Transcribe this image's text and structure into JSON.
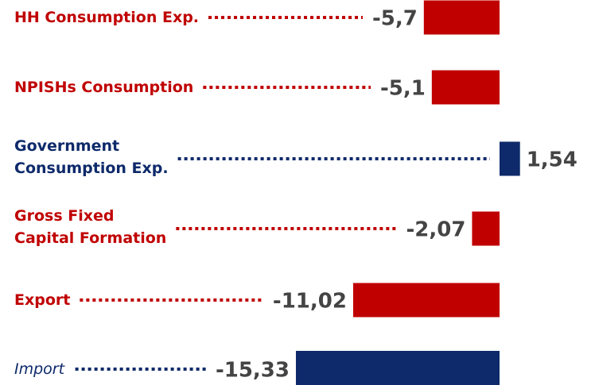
{
  "chart_data": {
    "type": "bar",
    "orientation": "horizontal",
    "categories": [
      "HH Consumption Exp.",
      "NPISHs Consumption",
      "Government\nConsumption Exp.",
      "Gross Fixed\nCapital Formation",
      "Export",
      "Import"
    ],
    "values": [
      -5.7,
      -5.1,
      1.54,
      -2.07,
      -11.02,
      -15.33
    ],
    "value_labels": [
      "-5,7",
      "-5,1",
      "1,54",
      "-2,07",
      "-11,02",
      "-15,33"
    ],
    "colors": [
      "#c00000",
      "#c00000",
      "#0e2a6b",
      "#c00000",
      "#c00000",
      "#0e2a6b"
    ]
  }
}
